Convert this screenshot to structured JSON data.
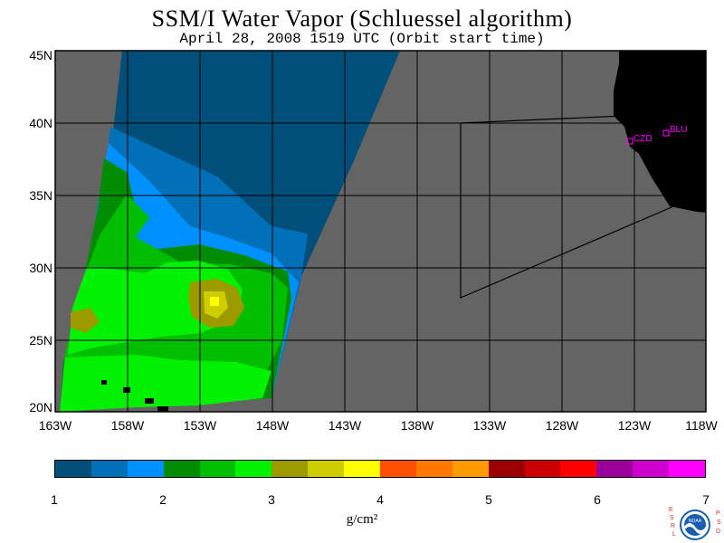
{
  "title": "SSM/I Water Vapor (Schluessel algorithm)",
  "subtitle": "April 28, 2008  1519 UTC  (Orbit start time)",
  "map": {
    "lat_range": [
      20,
      45
    ],
    "lon_range": [
      -163,
      -118
    ],
    "lat_labels": [
      {
        "value": 45,
        "text": "45N"
      },
      {
        "value": 40,
        "text": "40N"
      },
      {
        "value": 35,
        "text": "35N"
      },
      {
        "value": 30,
        "text": "30N"
      },
      {
        "value": 25,
        "text": "25N"
      },
      {
        "value": 20,
        "text": "20N"
      }
    ],
    "lon_labels": [
      {
        "value": -163,
        "text": "163W"
      },
      {
        "value": -158,
        "text": "158W"
      },
      {
        "value": -153,
        "text": "153W"
      },
      {
        "value": -148,
        "text": "148W"
      },
      {
        "value": -143,
        "text": "143W"
      },
      {
        "value": -138,
        "text": "138W"
      },
      {
        "value": -133,
        "text": "133W"
      },
      {
        "value": -128,
        "text": "128W"
      },
      {
        "value": -123,
        "text": "123W"
      },
      {
        "value": -118,
        "text": "118W"
      }
    ],
    "stations": [
      {
        "id": "CZD",
        "lat": 38.6,
        "lon": -123.2
      },
      {
        "id": "BLU",
        "lat": 39.3,
        "lon": -120.7
      }
    ],
    "colors": {
      "no_data": "#646464",
      "land": "#000000",
      "grid": "#000000",
      "station": "#ff00ff"
    }
  },
  "colorbar": {
    "ticks": [
      "1",
      "2",
      "3",
      "4",
      "5",
      "6",
      "7"
    ],
    "colors": [
      "#004f7a",
      "#0070b8",
      "#0090ff",
      "#008c00",
      "#00bf00",
      "#00f200",
      "#9b9b00",
      "#cdcd00",
      "#ffff00",
      "#ff5000",
      "#ff7800",
      "#ff9b00",
      "#9b0000",
      "#cd0000",
      "#ff0000",
      "#9b009b",
      "#cd00cd",
      "#ff00ff"
    ],
    "units": "g/cm²"
  },
  "logo": {
    "left_letters": [
      "E",
      "S",
      "R",
      "L"
    ],
    "right_letters": [
      "P",
      "S",
      "D"
    ],
    "emblem": "NOAA"
  }
}
